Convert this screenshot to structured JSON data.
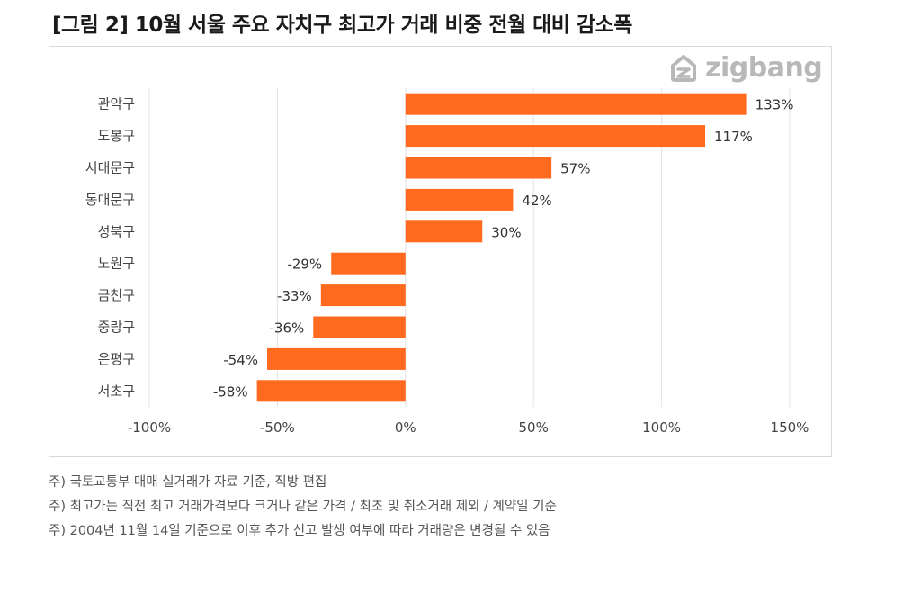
{
  "title": "[그림 2] 10월 서울 주요 자치구 최고가 거래 비중 전월 대비 감소폭",
  "logo": {
    "text": "zigbang",
    "icon": "zigbang-house-icon"
  },
  "chart_data": {
    "type": "bar",
    "orientation": "horizontal",
    "categories": [
      "관악구",
      "도봉구",
      "서대문구",
      "동대문구",
      "성북구",
      "노원구",
      "금천구",
      "중랑구",
      "은평구",
      "서초구"
    ],
    "values": [
      133,
      117,
      57,
      42,
      30,
      -29,
      -33,
      -36,
      -54,
      -58
    ],
    "value_labels": [
      "133%",
      "117%",
      "57%",
      "42%",
      "30%",
      "-29%",
      "-33%",
      "-36%",
      "-54%",
      "-58%"
    ],
    "xlim": [
      -100,
      150
    ],
    "xticks": [
      -100,
      -50,
      0,
      50,
      100,
      150
    ],
    "xtick_labels": [
      "-100%",
      "-50%",
      "0%",
      "50%",
      "100%",
      "150%"
    ],
    "grid": "vertical",
    "bar_color": "#ff6a1f",
    "xlabel": "",
    "ylabel": ""
  },
  "notes": [
    "주) 국토교통부 매매 실거래가 자료 기준, 직방 편집",
    "주) 최고가는 직전 최고 거래가격보다 크거나 같은 가격 / 최초 및 취소거래 제외 / 계약일 기준",
    "주) 2004년 11월 14일 기준으로 이후 추가 신고 발생 여부에 따라 거래량은 변경될 수 있음"
  ]
}
